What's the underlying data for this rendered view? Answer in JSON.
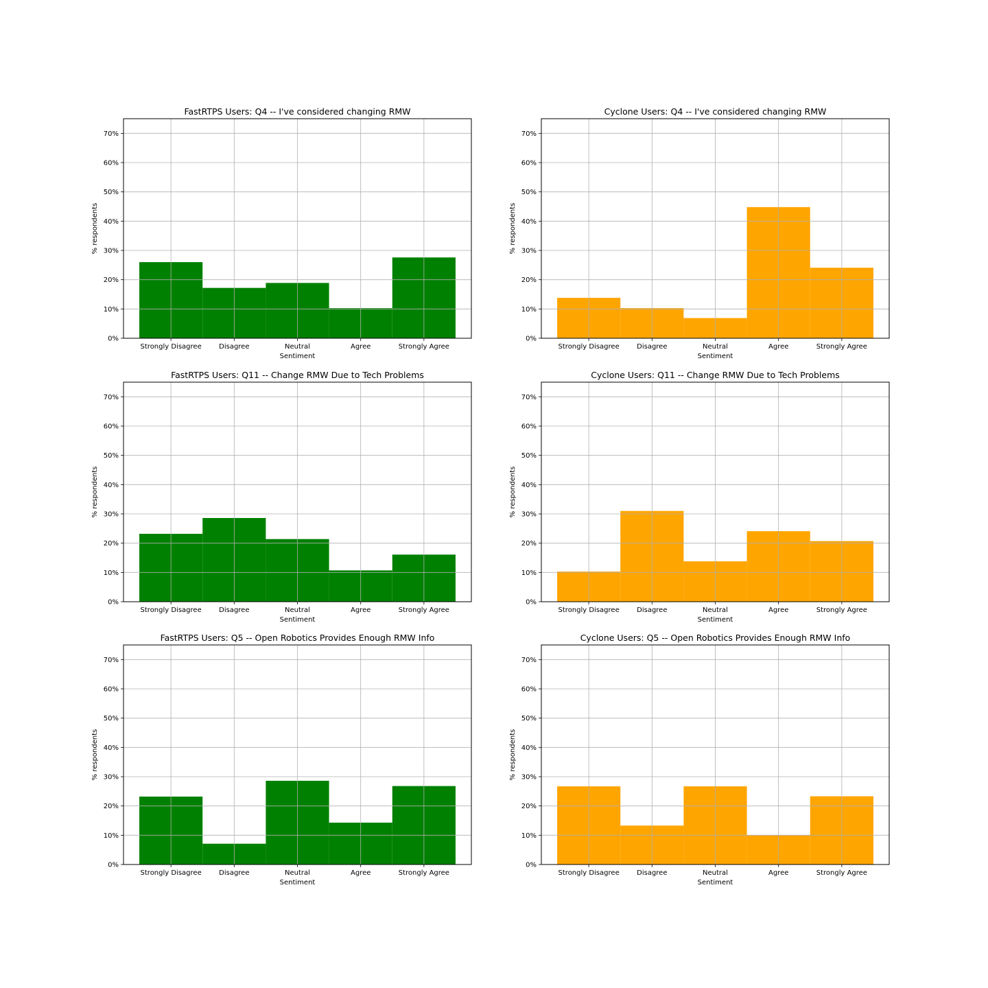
{
  "chart_data": [
    {
      "type": "bar",
      "title": "FastRTPS Users: Q4 -- I've considered changing RMW",
      "xlabel": "Sentiment",
      "ylabel": "% respondents",
      "categories": [
        "Strongly Disagree",
        "Disagree",
        "Neutral",
        "Agree",
        "Strongly Agree"
      ],
      "values": [
        26,
        17.2,
        18.9,
        10.3,
        27.6
      ],
      "ylim": [
        0,
        75
      ],
      "yticks": [
        0,
        10,
        20,
        30,
        40,
        50,
        60,
        70
      ],
      "ytick_labels": [
        "0%",
        "10%",
        "20%",
        "30%",
        "40%",
        "50%",
        "60%",
        "70%"
      ],
      "color": "#008000",
      "grid": true
    },
    {
      "type": "bar",
      "title": "Cyclone Users: Q4 -- I've considered changing RMW",
      "xlabel": "Sentiment",
      "ylabel": "% respondents",
      "categories": [
        "Strongly Disagree",
        "Disagree",
        "Neutral",
        "Agree",
        "Strongly Agree"
      ],
      "values": [
        13.8,
        10.3,
        6.9,
        44.8,
        24.1
      ],
      "ylim": [
        0,
        75
      ],
      "yticks": [
        0,
        10,
        20,
        30,
        40,
        50,
        60,
        70
      ],
      "ytick_labels": [
        "0%",
        "10%",
        "20%",
        "30%",
        "40%",
        "50%",
        "60%",
        "70%"
      ],
      "color": "#ffa500",
      "grid": true
    },
    {
      "type": "bar",
      "title": "FastRTPS Users: Q11 -- Change RMW Due to Tech Problems",
      "xlabel": "Sentiment",
      "ylabel": "% respondents",
      "categories": [
        "Strongly Disagree",
        "Disagree",
        "Neutral",
        "Agree",
        "Strongly Agree"
      ],
      "values": [
        23.2,
        28.6,
        21.4,
        10.7,
        16.1
      ],
      "ylim": [
        0,
        75
      ],
      "yticks": [
        0,
        10,
        20,
        30,
        40,
        50,
        60,
        70
      ],
      "ytick_labels": [
        "0%",
        "10%",
        "20%",
        "30%",
        "40%",
        "50%",
        "60%",
        "70%"
      ],
      "color": "#008000",
      "grid": true
    },
    {
      "type": "bar",
      "title": "Cyclone Users: Q11 -- Change RMW Due to Tech Problems",
      "xlabel": "Sentiment",
      "ylabel": "% respondents",
      "categories": [
        "Strongly Disagree",
        "Disagree",
        "Neutral",
        "Agree",
        "Strongly Agree"
      ],
      "values": [
        10.3,
        31,
        13.8,
        24.1,
        20.7
      ],
      "ylim": [
        0,
        75
      ],
      "yticks": [
        0,
        10,
        20,
        30,
        40,
        50,
        60,
        70
      ],
      "ytick_labels": [
        "0%",
        "10%",
        "20%",
        "30%",
        "40%",
        "50%",
        "60%",
        "70%"
      ],
      "color": "#ffa500",
      "grid": true
    },
    {
      "type": "bar",
      "title": "FastRTPS Users: Q5 -- Open Robotics Provides Enough RMW Info",
      "xlabel": "Sentiment",
      "ylabel": "% respondents",
      "categories": [
        "Strongly Disagree",
        "Disagree",
        "Neutral",
        "Agree",
        "Strongly Agree"
      ],
      "values": [
        23.2,
        7.1,
        28.6,
        14.3,
        26.8
      ],
      "ylim": [
        0,
        75
      ],
      "yticks": [
        0,
        10,
        20,
        30,
        40,
        50,
        60,
        70
      ],
      "ytick_labels": [
        "0%",
        "10%",
        "20%",
        "30%",
        "40%",
        "50%",
        "60%",
        "70%"
      ],
      "color": "#008000",
      "grid": true
    },
    {
      "type": "bar",
      "title": "Cyclone Users: Q5 -- Open Robotics Provides Enough RMW Info",
      "xlabel": "Sentiment",
      "ylabel": "% respondents",
      "categories": [
        "Strongly Disagree",
        "Disagree",
        "Neutral",
        "Agree",
        "Strongly Agree"
      ],
      "values": [
        26.7,
        13.3,
        26.7,
        10,
        23.3
      ],
      "ylim": [
        0,
        75
      ],
      "yticks": [
        0,
        10,
        20,
        30,
        40,
        50,
        60,
        70
      ],
      "ytick_labels": [
        "0%",
        "10%",
        "20%",
        "30%",
        "40%",
        "50%",
        "60%",
        "70%"
      ],
      "color": "#ffa500",
      "grid": true
    }
  ]
}
